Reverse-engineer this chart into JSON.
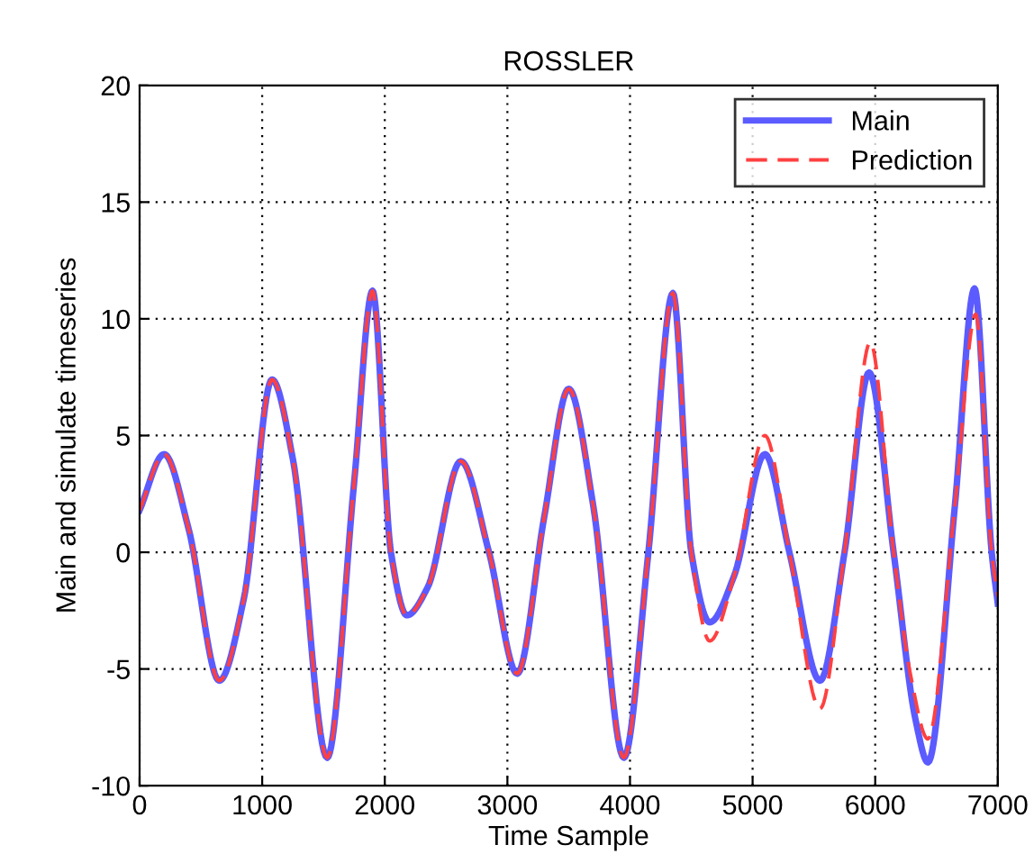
{
  "chart_data": {
    "type": "line",
    "title": "ROSSLER",
    "xlabel": "Time Sample",
    "ylabel": "Main and simulate timeseries",
    "xlim": [
      0,
      7000
    ],
    "ylim": [
      -10,
      20
    ],
    "xticks": [
      0,
      1000,
      2000,
      3000,
      4000,
      5000,
      6000,
      7000
    ],
    "yticks": [
      -10,
      -5,
      0,
      5,
      10,
      15,
      20
    ],
    "grid": true,
    "legend": "top right",
    "series": [
      {
        "name": "Main",
        "color": "#5b5bff",
        "line_style": "solid",
        "x": [
          0,
          200,
          400,
          650,
          850,
          1080,
          1250,
          1530,
          1750,
          1900,
          2050,
          2180,
          2350,
          2620,
          2850,
          3080,
          3300,
          3500,
          3700,
          3950,
          4150,
          4350,
          4500,
          4650,
          4850,
          5100,
          5300,
          5550,
          5750,
          5950,
          6150,
          6330,
          6430,
          6650,
          6810,
          6950,
          7000
        ],
        "values": [
          1.8,
          4.2,
          1,
          -5.5,
          -2,
          7.4,
          4,
          -8.8,
          3,
          11.2,
          0,
          -2.7,
          -1.5,
          3.9,
          0,
          -5.2,
          1.5,
          7,
          2,
          -8.8,
          0,
          11.1,
          0,
          -3,
          -1,
          4.2,
          0,
          -5.5,
          0,
          7.7,
          0,
          -7.2,
          -9,
          2,
          11.3,
          0,
          -2.2
        ]
      },
      {
        "name": "Prediction",
        "color": "#ff4040",
        "line_style": "dashed",
        "x": [
          0,
          200,
          400,
          650,
          850,
          1080,
          1250,
          1530,
          1750,
          1900,
          2050,
          2180,
          2350,
          2620,
          2850,
          3080,
          3300,
          3500,
          3700,
          3950,
          4150,
          4350,
          4500,
          4650,
          4850,
          5100,
          5300,
          5550,
          5750,
          5960,
          6150,
          6290,
          6430,
          6650,
          6820,
          6950,
          7000
        ],
        "values": [
          1.8,
          4.2,
          1,
          -5.5,
          -2,
          7.4,
          4,
          -8.8,
          3,
          11.2,
          0,
          -2.7,
          -1.5,
          3.9,
          0,
          -5.2,
          1.5,
          7,
          2,
          -8.8,
          0,
          11.1,
          0,
          -3.8,
          -1,
          5,
          0,
          -6.7,
          0,
          9,
          0,
          -5.3,
          -8,
          2,
          10.2,
          0,
          -1.9
        ]
      }
    ]
  }
}
